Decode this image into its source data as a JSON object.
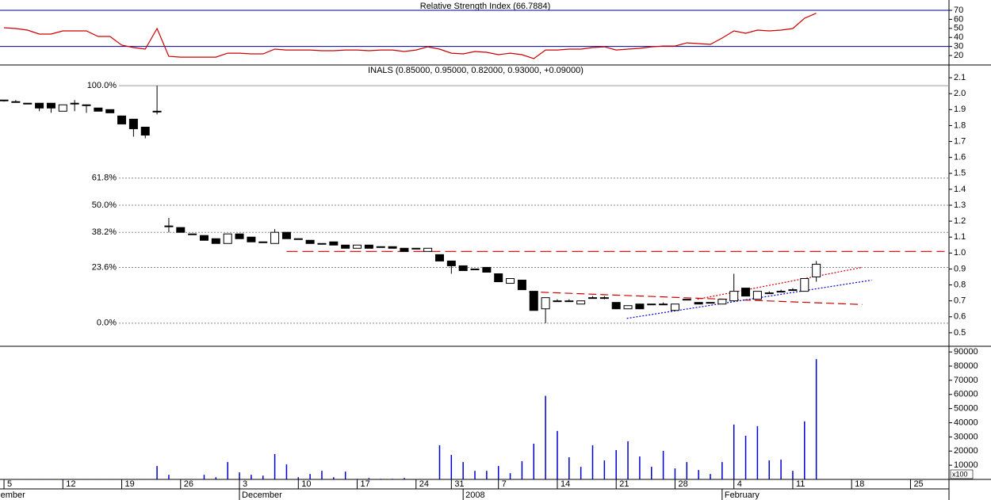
{
  "chart_data": [
    {
      "type": "line",
      "title": "Relative Strength Index (66.7884)",
      "color": "#cc0000",
      "line_color": "#00008b",
      "x": [
        0,
        1,
        2,
        3,
        4,
        5,
        6,
        7,
        8,
        9,
        10,
        11,
        12,
        13,
        14,
        15,
        16,
        17,
        18,
        19,
        20,
        21,
        22,
        23,
        24,
        25,
        26,
        27,
        28,
        29,
        30,
        31,
        32,
        33,
        34,
        35,
        36,
        37,
        38,
        39,
        40,
        41,
        42,
        43,
        44,
        45,
        46,
        47,
        48,
        49,
        50,
        51,
        52,
        53,
        54,
        55,
        56,
        57,
        58,
        59,
        60,
        61,
        62,
        63,
        64,
        65,
        66,
        67,
        68,
        69
      ],
      "values": [
        50.7,
        49.8,
        48.1,
        43.7,
        43.7,
        47.2,
        47.2,
        47.2,
        41.1,
        41.1,
        31.4,
        28.8,
        27.0,
        49.8,
        19.1,
        18.2,
        18.2,
        18.2,
        18.2,
        22.6,
        22.6,
        21.8,
        21.8,
        27.0,
        26.1,
        26.1,
        26.1,
        25.3,
        25.3,
        26.1,
        26.1,
        25.3,
        26.1,
        26.1,
        24.4,
        26.1,
        29.6,
        27.0,
        22.6,
        21.8,
        24.4,
        23.5,
        20.9,
        22.6,
        20.9,
        16.5,
        26.1,
        26.1,
        27.0,
        27.0,
        28.8,
        29.6,
        26.1,
        27.0,
        27.9,
        29.6,
        30.5,
        30.5,
        34.0,
        33.2,
        32.3,
        39.3,
        47.2,
        44.6,
        48.1,
        47.2,
        48.1,
        49.8,
        61.2,
        66.7884
      ],
      "levels": [
        70,
        30
      ],
      "ylim": [
        9.5,
        81.4
      ],
      "yticks": [
        70,
        60,
        50,
        40,
        30,
        20
      ],
      "xlim": [
        -0.34,
        80.27
      ]
    },
    {
      "type": "candlestick",
      "title": "INALS (0.85000, 0.95000, 0.82000, 0.93000, +0.09000)",
      "x": [
        0,
        1,
        2,
        3,
        4,
        5,
        6,
        7,
        8,
        9,
        10,
        11,
        12,
        13,
        14,
        15,
        16,
        17,
        18,
        19,
        20,
        21,
        22,
        23,
        24,
        25,
        26,
        27,
        28,
        29,
        30,
        31,
        32,
        33,
        34,
        35,
        36,
        37,
        38,
        39,
        40,
        41,
        42,
        43,
        44,
        45,
        46,
        47,
        48,
        49,
        50,
        51,
        52,
        53,
        54,
        55,
        56,
        57,
        58,
        59,
        60,
        61,
        62,
        63,
        64,
        65,
        66,
        67,
        68,
        69
      ],
      "open": [
        1.96,
        1.95,
        1.94,
        1.94,
        1.94,
        1.89,
        1.94,
        1.93,
        1.91,
        1.9,
        1.86,
        1.84,
        1.79,
        1.89,
        1.17,
        1.16,
        1.12,
        1.11,
        1.09,
        1.06,
        1.12,
        1.1,
        1.07,
        1.06,
        1.13,
        1.09,
        1.08,
        1.06,
        1.07,
        1.05,
        1.03,
        1.05,
        1.04,
        1.04,
        1.03,
        1.03,
        1.01,
        0.99,
        0.95,
        0.92,
        0.9,
        0.91,
        0.87,
        0.81,
        0.83,
        0.76,
        0.65,
        0.7,
        0.7,
        0.68,
        0.72,
        0.72,
        0.69,
        0.65,
        0.68,
        0.68,
        0.68,
        0.64,
        0.71,
        0.69,
        0.69,
        0.68,
        0.7,
        0.78,
        0.71,
        0.75,
        0.76,
        0.77,
        0.76,
        0.85
      ],
      "high": [
        1.96,
        1.96,
        1.94,
        1.94,
        1.94,
        1.93,
        1.96,
        1.93,
        1.91,
        1.9,
        1.86,
        1.84,
        1.79,
        2.05,
        1.22,
        1.16,
        1.12,
        1.11,
        1.09,
        1.12,
        1.12,
        1.1,
        1.07,
        1.15,
        1.13,
        1.09,
        1.08,
        1.06,
        1.07,
        1.05,
        1.05,
        1.05,
        1.04,
        1.04,
        1.03,
        1.03,
        1.03,
        0.99,
        0.95,
        0.92,
        0.9,
        0.91,
        0.87,
        0.84,
        0.83,
        0.76,
        0.72,
        0.71,
        0.71,
        0.7,
        0.73,
        0.73,
        0.69,
        0.67,
        0.68,
        0.68,
        0.69,
        0.68,
        0.71,
        0.69,
        0.69,
        0.71,
        0.87,
        0.78,
        0.76,
        0.76,
        0.77,
        0.78,
        0.84,
        0.95
      ],
      "low": [
        1.95,
        1.95,
        1.94,
        1.89,
        1.88,
        1.89,
        1.89,
        1.88,
        1.89,
        1.88,
        1.81,
        1.73,
        1.72,
        1.87,
        1.13,
        1.13,
        1.12,
        1.08,
        1.06,
        1.06,
        1.09,
        1.07,
        1.07,
        1.06,
        1.09,
        1.09,
        1.06,
        1.06,
        1.05,
        1.03,
        1.03,
        1.03,
        1.04,
        1.03,
        1.01,
        1.03,
        1.01,
        0.95,
        0.87,
        0.89,
        0.9,
        0.88,
        0.82,
        0.81,
        0.77,
        0.64,
        0.56,
        0.7,
        0.7,
        0.68,
        0.72,
        0.71,
        0.65,
        0.65,
        0.65,
        0.68,
        0.68,
        0.64,
        0.71,
        0.68,
        0.69,
        0.68,
        0.7,
        0.73,
        0.71,
        0.75,
        0.76,
        0.77,
        0.76,
        0.82
      ],
      "close": [
        1.96,
        1.95,
        1.94,
        1.91,
        1.91,
        1.93,
        1.94,
        1.93,
        1.89,
        1.88,
        1.81,
        1.78,
        1.74,
        1.89,
        1.17,
        1.13,
        1.12,
        1.08,
        1.06,
        1.12,
        1.09,
        1.07,
        1.07,
        1.13,
        1.09,
        1.09,
        1.06,
        1.06,
        1.05,
        1.03,
        1.05,
        1.03,
        1.04,
        1.03,
        1.01,
        1.03,
        1.03,
        0.95,
        0.92,
        0.89,
        0.9,
        0.88,
        0.82,
        0.84,
        0.77,
        0.64,
        0.72,
        0.7,
        0.7,
        0.7,
        0.72,
        0.72,
        0.65,
        0.67,
        0.65,
        0.68,
        0.68,
        0.68,
        0.71,
        0.68,
        0.69,
        0.71,
        0.76,
        0.73,
        0.76,
        0.75,
        0.76,
        0.77,
        0.84,
        0.93
      ],
      "levels": [
        {
          "label": "100.0%",
          "value": 2.05
        },
        {
          "label": "61.8%",
          "value": 1.47
        },
        {
          "label": "50.0%",
          "value": 1.3
        },
        {
          "label": "38.2%",
          "value": 1.13
        },
        {
          "label": "23.6%",
          "value": 0.91
        },
        {
          "label": "0.0%",
          "value": 0.56
        }
      ],
      "trendlines": [
        {
          "x": [
            24.0,
            79.9
          ],
          "y": [
            1.01,
            1.01
          ],
          "color": "#cc0000",
          "dash": "14 6"
        },
        {
          "x": [
            44.6,
            72.9
          ],
          "y": [
            0.757,
            0.677
          ],
          "color": "#cc0000",
          "dash": "10 5"
        },
        {
          "x": [
            58.9,
            72.9
          ],
          "y": [
            0.71,
            0.91
          ],
          "color": "#cc0000",
          "dash": "2 2"
        },
        {
          "x": [
            52.9,
            73.7
          ],
          "y": [
            0.59,
            0.83
          ],
          "color": "#0000cc",
          "dash": "2 2"
        }
      ],
      "ylim": [
        0.415,
        2.18
      ],
      "yticks": [
        2.1,
        {
          "value": 2.0,
          "label": "2.0"
        },
        1.9,
        1.8,
        1.7,
        1.6,
        1.5,
        1.4,
        1.3,
        1.2,
        1.1,
        {
          "value": 1.0,
          "label": "1.0"
        },
        0.9,
        0.8,
        0.7,
        0.6,
        0.5
      ],
      "xlim": [
        -0.34,
        80.27
      ]
    },
    {
      "type": "bar",
      "color": "#0000cc",
      "ylabel": "x100",
      "x": [
        0,
        1,
        2,
        3,
        4,
        5,
        6,
        7,
        8,
        9,
        10,
        11,
        12,
        13,
        14,
        15,
        16,
        17,
        18,
        19,
        20,
        21,
        22,
        23,
        24,
        25,
        26,
        27,
        28,
        29,
        30,
        31,
        32,
        33,
        34,
        35,
        36,
        37,
        38,
        39,
        40,
        41,
        42,
        43,
        44,
        45,
        46,
        47,
        48,
        49,
        50,
        51,
        52,
        53,
        54,
        55,
        56,
        57,
        58,
        59,
        60,
        61,
        62,
        63,
        64,
        65,
        66,
        67,
        68,
        69
      ],
      "values": [
        300,
        300,
        300,
        300,
        300,
        300,
        300,
        300,
        300,
        300,
        300,
        300,
        300,
        9440,
        3240,
        300,
        300,
        3240,
        1550,
        12250,
        4930,
        3240,
        2680,
        17890,
        10560,
        1550,
        3800,
        6060,
        1550,
        5490,
        420,
        990,
        420,
        420,
        990,
        200,
        300,
        24090,
        17320,
        12250,
        6060,
        6060,
        9440,
        4370,
        12820,
        25210,
        59020,
        34230,
        15630,
        8870,
        24090,
        13380,
        20700,
        26900,
        16200,
        8870,
        20140,
        7750,
        12250,
        6620,
        3800,
        12250,
        38730,
        30850,
        37610,
        13380,
        13940,
        6060,
        40990,
        84930
      ],
      "ylim": [
        0,
        94000
      ],
      "yticks": [
        90000,
        80000,
        70000,
        60000,
        50000,
        40000,
        30000,
        20000,
        10000
      ],
      "xlim": [
        -0.34,
        80.27
      ],
      "xticks": [
        {
          "value": 0,
          "label": "5"
        },
        {
          "value": 5,
          "label": "12"
        },
        {
          "value": 10,
          "label": "19"
        },
        {
          "value": 15,
          "label": "26"
        },
        {
          "value": 20,
          "label": "3"
        },
        {
          "value": 25,
          "label": "10"
        },
        {
          "value": 30,
          "label": "17"
        },
        {
          "value": 35,
          "label": "24"
        },
        {
          "value": 38,
          "label": "31"
        },
        {
          "value": 42,
          "label": "7"
        },
        {
          "value": 47,
          "label": "14"
        },
        {
          "value": 52,
          "label": "21"
        },
        {
          "value": 57,
          "label": "28"
        },
        {
          "value": 62,
          "label": "4"
        },
        {
          "value": 67,
          "label": "11"
        },
        {
          "value": 72,
          "label": "18"
        },
        {
          "value": 77,
          "label": "25"
        }
      ],
      "month_labels": [
        {
          "value": -0.5,
          "label": "ember"
        },
        {
          "value": 20,
          "label": "December"
        },
        {
          "value": 39,
          "label": "2008"
        },
        {
          "value": 61,
          "label": "February"
        }
      ]
    }
  ]
}
